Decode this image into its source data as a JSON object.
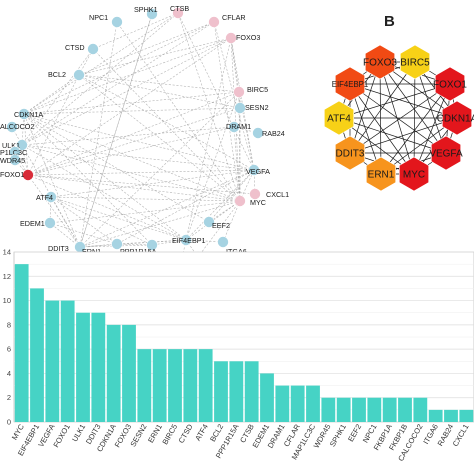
{
  "panel_b_label": "B",
  "colors": {
    "light_node": "#a6d3e2",
    "pink_node": "#efc0cc",
    "red_node": "#d82c38",
    "edge_gray": "#9b9b9b",
    "hex_red": "#e3161c",
    "hex_orangered": "#f14a14",
    "hex_orange": "#f7941d",
    "hex_lightorange": "#fbb03b",
    "hex_yellow": "#f7d117",
    "bar": "#46d3c5"
  },
  "network_a": {
    "nodes": [
      {
        "label": "SPHK1",
        "color": "light"
      },
      {
        "label": "CTSB",
        "color": "pink"
      },
      {
        "label": "NPC1",
        "color": "light"
      },
      {
        "label": "CFLAR",
        "color": "pink"
      },
      {
        "label": "FOXO3",
        "color": "pink"
      },
      {
        "label": "CTSD",
        "color": "light"
      },
      {
        "label": "BCL2",
        "color": "light"
      },
      {
        "label": "BIRC5",
        "color": "pink"
      },
      {
        "label": "SESN2",
        "color": "light"
      },
      {
        "label": "CDKN1A",
        "color": "light"
      },
      {
        "label": "ALCOCO2",
        "color": "light"
      },
      {
        "label": "DRAM1",
        "color": "light"
      },
      {
        "label": "RAB24",
        "color": "light"
      },
      {
        "label": "ULK1",
        "color": "light"
      },
      {
        "label": "P1LC3C",
        "color": "light"
      },
      {
        "label": "WDR45",
        "color": "light"
      },
      {
        "label": "FOXO1",
        "color": "red"
      },
      {
        "label": "VEGFA",
        "color": "light"
      },
      {
        "label": "CXCL1",
        "color": "pink"
      },
      {
        "label": "ATF4",
        "color": "light"
      },
      {
        "label": "MYC",
        "color": "pink"
      },
      {
        "label": "EDEM1",
        "color": "light"
      },
      {
        "label": "EEF2",
        "color": "light"
      },
      {
        "label": "ITGA6",
        "color": "light"
      },
      {
        "label": "DDIT3",
        "color": "light"
      },
      {
        "label": "EIF4EBP1",
        "color": "light"
      },
      {
        "label": "ERN1",
        "color": "light"
      },
      {
        "label": "PPP1R15A",
        "color": "light"
      },
      {
        "label": "FKBP1B",
        "color": "light"
      },
      {
        "label": "FKBP1A",
        "color": "light"
      }
    ]
  },
  "network_b": {
    "nodes": [
      {
        "label": "FOXO3",
        "color": "hex_orangered"
      },
      {
        "label": "BIRC5",
        "color": "hex_yellow"
      },
      {
        "label": "FOXO1",
        "color": "hex_red"
      },
      {
        "label": "CDKN1A",
        "color": "hex_red"
      },
      {
        "label": "VEGFA",
        "color": "hex_red"
      },
      {
        "label": "MYC",
        "color": "hex_red"
      },
      {
        "label": "ERN1",
        "color": "hex_orange"
      },
      {
        "label": "DDIT3",
        "color": "hex_orange"
      },
      {
        "label": "ATF4",
        "color": "hex_yellow"
      },
      {
        "label": "EIF4EBP1",
        "color": "hex_orangered"
      }
    ]
  },
  "chart_data": {
    "type": "bar",
    "categories": [
      "MYC",
      "EIF4EBP1",
      "VEGFA",
      "FOXO1",
      "ULK1",
      "DDIT3",
      "CDKN1A",
      "FOXO3",
      "SESN2",
      "ERN1",
      "BIRC5",
      "CTSD",
      "ATF4",
      "BCL2",
      "PPP1R15A",
      "CTSB",
      "EDEM1",
      "DRAM1",
      "CFLAR",
      "MAP1LC3C",
      "WDR45",
      "SPHK1",
      "EEF2",
      "NPC1",
      "FKBP1A",
      "FKBP1B",
      "CALCOCO2",
      "ITGA6",
      "RAB24",
      "CXCL1"
    ],
    "values": [
      13,
      11,
      10,
      10,
      9,
      9,
      8,
      8,
      6,
      6,
      6,
      6,
      6,
      5,
      5,
      5,
      4,
      3,
      3,
      3,
      2,
      2,
      2,
      2,
      2,
      2,
      2,
      1,
      1,
      1
    ],
    "y_ticks": [
      "0",
      "2",
      "4",
      "6",
      "8",
      "10",
      "12",
      "14"
    ],
    "ylim": [
      0,
      14
    ],
    "grid": true
  }
}
